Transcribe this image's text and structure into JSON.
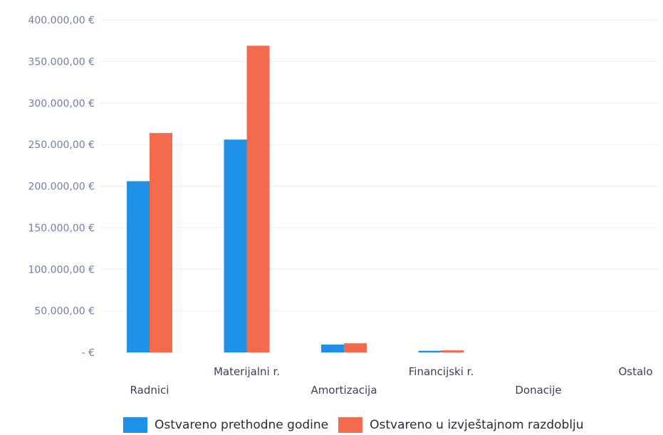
{
  "chart_data": {
    "type": "bar",
    "categories": [
      "Radnici",
      "Materijalni r.",
      "Amortizacija",
      "Financijski r.",
      "Donacije",
      "Ostalo"
    ],
    "series": [
      {
        "name": "Ostvareno prethodne godine",
        "color": "#1e90e6",
        "values": [
          206000,
          256000,
          9500,
          2000,
          0,
          0
        ]
      },
      {
        "name": "Ostvareno u izvještajnom razdoblju",
        "color": "#f26b4e",
        "values": [
          264000,
          369000,
          11000,
          2500,
          0,
          0
        ]
      }
    ],
    "ylim": [
      0,
      400000
    ],
    "y_ticks": [
      {
        "value": 400000,
        "label": "400.000,00 €"
      },
      {
        "value": 350000,
        "label": "350.000,00 €"
      },
      {
        "value": 300000,
        "label": "300.000,00 €"
      },
      {
        "value": 250000,
        "label": "250.000,00 €"
      },
      {
        "value": 200000,
        "label": "200.000,00 €"
      },
      {
        "value": 150000,
        "label": "150.000,00 €"
      },
      {
        "value": 100000,
        "label": "100.000,00 €"
      },
      {
        "value": 50000,
        "label": "50.000,00 €"
      },
      {
        "value": 0,
        "label": "-  €"
      }
    ],
    "grid": true,
    "legend_position": "bottom"
  }
}
